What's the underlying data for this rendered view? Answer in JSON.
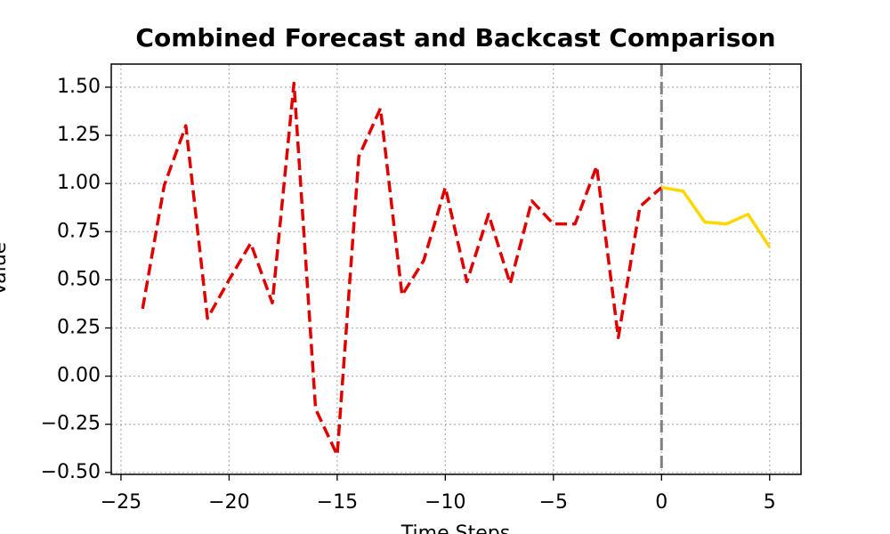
{
  "chart_data": {
    "type": "line",
    "title": "Combined Forecast and Backcast Comparison",
    "xlabel": "Time Steps",
    "ylabel": "Value",
    "xlim": [
      -25.45,
      6.45
    ],
    "ylim": [
      -0.51,
      1.62
    ],
    "xticks": [
      {
        "value": -25,
        "label": "−25"
      },
      {
        "value": -20,
        "label": "−20"
      },
      {
        "value": -15,
        "label": "−15"
      },
      {
        "value": -10,
        "label": "−10"
      },
      {
        "value": -5,
        "label": "−5"
      },
      0,
      5
    ],
    "yticks": [
      {
        "value": -0.5,
        "label": "−0.50"
      },
      {
        "value": -0.25,
        "label": "−0.25"
      },
      {
        "value": 0,
        "label": "0.00"
      },
      {
        "value": 0.25,
        "label": "0.25"
      },
      {
        "value": 0.5,
        "label": "0.50"
      },
      {
        "value": 0.75,
        "label": "0.75"
      },
      {
        "value": 1.0,
        "label": "1.00"
      },
      {
        "value": 1.25,
        "label": "1.25"
      },
      {
        "value": 1.5,
        "label": "1.50"
      }
    ],
    "grid": true,
    "vline": {
      "x": 0,
      "color": "#808080",
      "dash": "dashed"
    },
    "series": [
      {
        "color": "#e00000",
        "dash": "dashed",
        "x": [
          -24,
          -23,
          -22,
          -21,
          -20,
          -19,
          -18,
          -17,
          -16,
          -15,
          -14,
          -13,
          -12,
          -11,
          -10,
          -9,
          -8,
          -7,
          -6,
          -5,
          -4,
          -3,
          -2,
          -1,
          0
        ],
        "values": [
          0.35,
          0.99,
          1.3,
          0.3,
          0.5,
          0.69,
          0.38,
          1.52,
          -0.17,
          -0.41,
          1.14,
          1.39,
          0.42,
          0.6,
          0.98,
          0.49,
          0.84,
          0.48,
          0.91,
          0.79,
          0.79,
          1.09,
          0.2,
          0.88,
          0.98
        ]
      },
      {
        "color": "#ffd700",
        "dash": "solid",
        "x": [
          0,
          1,
          2,
          3,
          4,
          5
        ],
        "values": [
          0.98,
          0.96,
          0.8,
          0.79,
          0.84,
          0.67
        ]
      }
    ]
  }
}
